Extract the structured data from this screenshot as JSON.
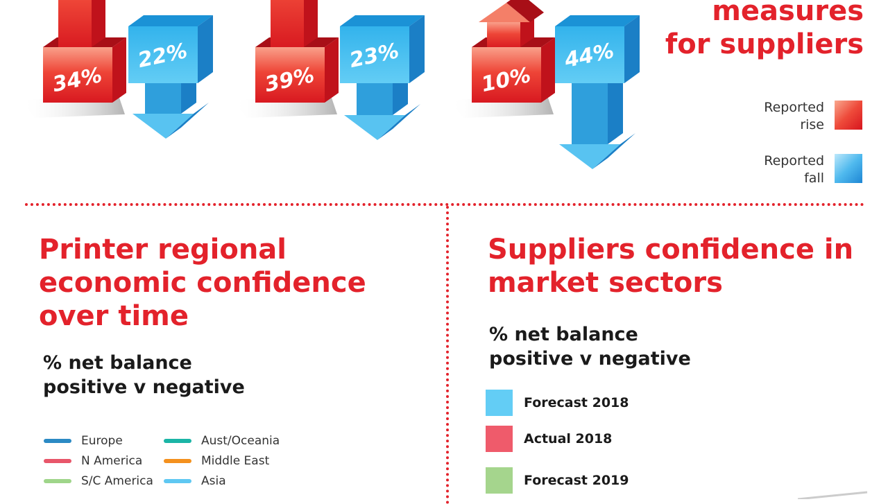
{
  "top_panel": {
    "title_lines": [
      "measures",
      "for suppliers"
    ],
    "legend": [
      {
        "label_lines": [
          "Reported",
          "rise"
        ],
        "key": "rise"
      },
      {
        "label_lines": [
          "Reported",
          "fall"
        ],
        "key": "fall"
      }
    ]
  },
  "chart_data": [
    {
      "type": "bar",
      "series": [
        {
          "name": "Reported rise",
          "values": [
            34,
            39,
            10
          ]
        },
        {
          "name": "Reported fall",
          "values": [
            22,
            23,
            44
          ]
        }
      ],
      "value_labels": {
        "rise": [
          "34%",
          "39%",
          "10%"
        ],
        "fall": [
          "22%",
          "23%",
          "44%"
        ]
      }
    }
  ],
  "regional": {
    "title_lines": [
      "Printer regional",
      "economic confidence",
      "over time"
    ],
    "subtitle_lines": [
      "% net balance",
      "positive v negative"
    ],
    "legend": [
      {
        "label": "Europe",
        "color": "#2b8ac4"
      },
      {
        "label": "Aust/Oceania",
        "color": "#1bb5a6"
      },
      {
        "label": "N America",
        "color": "#e8566a"
      },
      {
        "label": "Middle East",
        "color": "#f4911e"
      },
      {
        "label": "S/C America",
        "color": "#9fd58a"
      },
      {
        "label": "Asia",
        "color": "#5fc8f2"
      }
    ]
  },
  "sectors": {
    "title_lines": [
      "Suppliers confidence in",
      "market sectors"
    ],
    "subtitle_lines": [
      "% net balance",
      "positive v negative"
    ],
    "legend": [
      {
        "label": "Forecast 2018",
        "color": "#63cdf5"
      },
      {
        "label": "Actual 2018",
        "color": "#ef5b6b"
      },
      {
        "label": "Forecast 2019",
        "color": "#a5d58d"
      }
    ]
  },
  "colors": {
    "accent_red": "#e3222b",
    "rise_dark": "#c0121b",
    "fall_dark": "#1b7fc6"
  }
}
